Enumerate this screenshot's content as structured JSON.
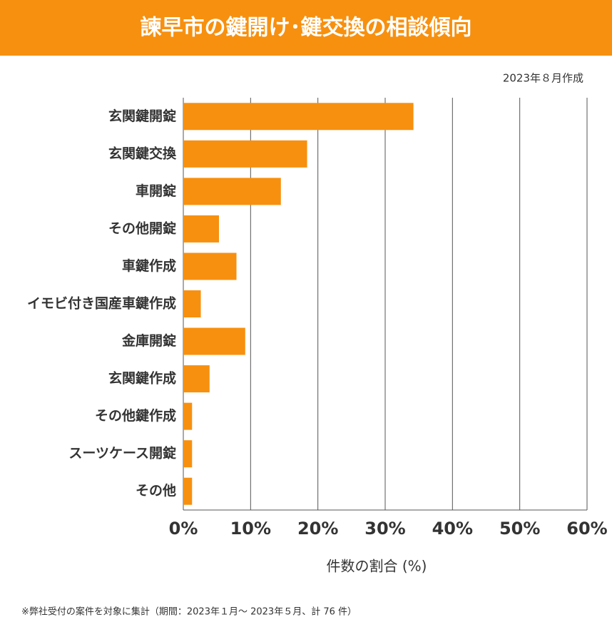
{
  "chart_data": {
    "type": "bar",
    "orientation": "horizontal",
    "title": "諫早市の鍵開け･鍵交換の相談傾向",
    "note": "2023年８月作成",
    "x_label": "件数の割合 (%)",
    "footnote": "※弊社受付の案件を対象に集計（期間：2023年１月～ 2023年５月、計 76 件）",
    "categories": [
      "玄関鍵開錠",
      "玄関鍵交換",
      "車開錠",
      "その他開錠",
      "車鍵作成",
      "イモビ付き国産車鍵作成",
      "金庫開錠",
      "玄関鍵作成",
      "その他鍵作成",
      "スーツケース開錠",
      "その他"
    ],
    "values": [
      34.2,
      18.4,
      14.5,
      5.3,
      7.9,
      2.6,
      9.2,
      3.9,
      1.3,
      1.3,
      1.3
    ],
    "color": "#f7900f",
    "xlim": [
      0,
      60
    ],
    "xticks": [
      {
        "value": 0,
        "label": "0%"
      },
      {
        "value": 10,
        "label": "10%"
      },
      {
        "value": 20,
        "label": "20%"
      },
      {
        "value": 30,
        "label": "30%"
      },
      {
        "value": 40,
        "label": "40%"
      },
      {
        "value": 50,
        "label": "50%"
      },
      {
        "value": 60,
        "label": "60%"
      }
    ],
    "grid": true
  }
}
